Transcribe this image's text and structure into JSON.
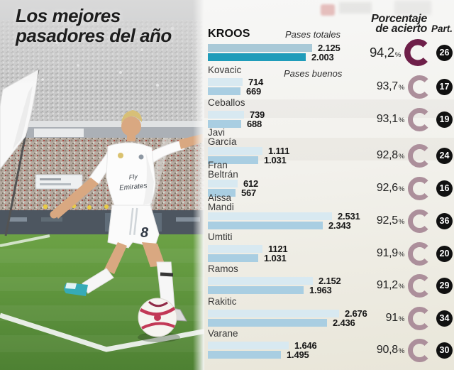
{
  "title": {
    "line1": "Los mejores",
    "line2": "pasadores del año",
    "full": "Los mejores pasadores del año"
  },
  "header": {
    "pct_line1": "Porcentaje",
    "pct_line2": "de acierto",
    "part": "Part."
  },
  "legend": {
    "total": "Pases totales",
    "good": "Pases buenos"
  },
  "symbols": {
    "percent": "%"
  },
  "colors": {
    "bar_total": "#d8e9f1",
    "bar_good": "#a9cee2",
    "bar_total_highlight": "#a9c9d7",
    "bar_good_highlight": "#1f9cba",
    "donut": "#ac8f9b",
    "donut_highlight": "#6e1f49",
    "badge_bg": "#111111",
    "badge_text": "#ffffff",
    "panel_top": "#f7f7f6",
    "panel_bottom": "#e9e6d9",
    "title_text": "#1d1d1d"
  },
  "chart_data": {
    "type": "bar",
    "orientation": "horizontal",
    "title": "Los mejores pasadores del año",
    "series_labels": [
      "Pases totales",
      "Pases buenos"
    ],
    "extra_columns": [
      "Porcentaje de acierto",
      "Part."
    ],
    "value_range": [
      0,
      2676
    ],
    "players": [
      {
        "name": "Kroos",
        "name_lines": [
          "KROOS"
        ],
        "pases_totales": 2125,
        "pases_totales_label": "2.125",
        "pases_buenos": 2003,
        "pases_buenos_label": "2.003",
        "porcentaje_acierto": "94,2",
        "partidos": 26,
        "highlight": true
      },
      {
        "name": "Kovacic",
        "name_lines": [
          "Kovacic"
        ],
        "pases_totales": 714,
        "pases_totales_label": "714",
        "pases_buenos": 669,
        "pases_buenos_label": "669",
        "porcentaje_acierto": "93,7",
        "partidos": 17,
        "highlight": false
      },
      {
        "name": "Ceballos",
        "name_lines": [
          "Ceballos"
        ],
        "pases_totales": 739,
        "pases_totales_label": "739",
        "pases_buenos": 688,
        "pases_buenos_label": "688",
        "porcentaje_acierto": "93,1",
        "partidos": 19,
        "highlight": false
      },
      {
        "name": "Javi García",
        "name_lines": [
          "Javi",
          "García"
        ],
        "pases_totales": 1111,
        "pases_totales_label": "1.111",
        "pases_buenos": 1031,
        "pases_buenos_label": "1.031",
        "porcentaje_acierto": "92,8",
        "partidos": 24,
        "highlight": false
      },
      {
        "name": "Fran Beltrán",
        "name_lines": [
          "Fran",
          "Beltrán"
        ],
        "pases_totales": 612,
        "pases_totales_label": "612",
        "pases_buenos": 567,
        "pases_buenos_label": "567",
        "porcentaje_acierto": "92,6",
        "partidos": 16,
        "highlight": false
      },
      {
        "name": "Aissa Mandi",
        "name_lines": [
          "Aissa",
          "Mandi"
        ],
        "pases_totales": 2531,
        "pases_totales_label": "2.531",
        "pases_buenos": 2343,
        "pases_buenos_label": "2.343",
        "porcentaje_acierto": "92,5",
        "partidos": 36,
        "highlight": false
      },
      {
        "name": "Umtiti",
        "name_lines": [
          "Umtiti"
        ],
        "pases_totales": 1121,
        "pases_totales_label": "1121",
        "pases_buenos": 1031,
        "pases_buenos_label": "1.031",
        "porcentaje_acierto": "91,9",
        "partidos": 20,
        "highlight": false
      },
      {
        "name": "Ramos",
        "name_lines": [
          "Ramos"
        ],
        "pases_totales": 2152,
        "pases_totales_label": "2.152",
        "pases_buenos": 1963,
        "pases_buenos_label": "1.963",
        "porcentaje_acierto": "91,2",
        "partidos": 29,
        "highlight": false
      },
      {
        "name": "Rakitic",
        "name_lines": [
          "Rakitic"
        ],
        "pases_totales": 2676,
        "pases_totales_label": "2.676",
        "pases_buenos": 2436,
        "pases_buenos_label": "2.436",
        "porcentaje_acierto": "91",
        "partidos": 34,
        "highlight": false
      },
      {
        "name": "Varane",
        "name_lines": [
          "Varane"
        ],
        "pases_totales": 1646,
        "pases_totales_label": "1.646",
        "pases_buenos": 1495,
        "pases_buenos_label": "1.495",
        "porcentaje_acierto": "90,8",
        "partidos": 30,
        "highlight": false
      }
    ]
  }
}
